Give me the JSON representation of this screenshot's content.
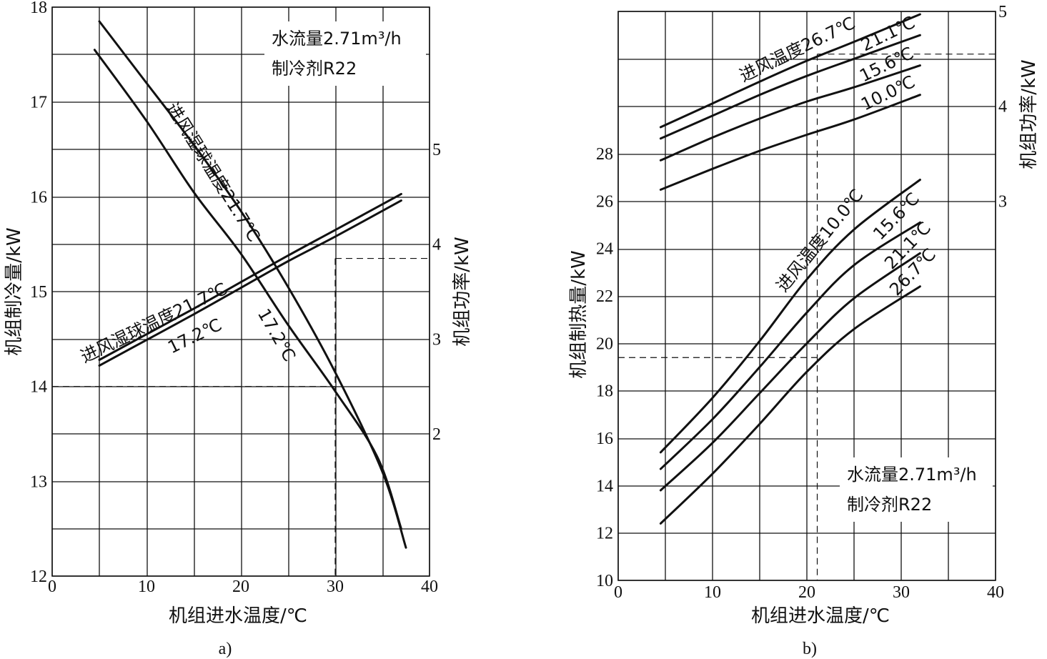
{
  "chart_data": [
    {
      "type": "line",
      "panel_label": "a)",
      "xlabel": "机组进水温度/℃",
      "ylabel": "机组制冷量/kW",
      "y2label": "机组功率/kW",
      "xlim": [
        0,
        40
      ],
      "ylim": [
        12,
        18
      ],
      "y2lim": [
        0,
        6
      ],
      "x_ticks": [
        "0",
        "10",
        "20",
        "30",
        "40"
      ],
      "y_ticks": [
        "12",
        "13",
        "14",
        "15",
        "16",
        "17",
        "18"
      ],
      "y2_ticks": [
        "2",
        "3",
        "4",
        "5"
      ],
      "info_box": [
        "水流量2.71m³/h",
        "制冷剂R22"
      ],
      "grid": true,
      "series": [
        {
          "name": "进风湿球温度21.7℃",
          "axis": "left",
          "x": [
            5,
            10,
            15,
            20,
            25,
            30,
            35,
            37.5
          ],
          "y": [
            17.85,
            17.2,
            16.55,
            15.85,
            15.05,
            14.15,
            13.1,
            12.3
          ]
        },
        {
          "name": "17.2℃",
          "axis": "left",
          "x": [
            4.5,
            10,
            15,
            20,
            25,
            30,
            34.5,
            37
          ],
          "y": [
            17.55,
            16.8,
            16.05,
            15.4,
            14.65,
            13.95,
            13.25,
            12.5
          ]
        },
        {
          "name": "进风湿球温度21.7℃",
          "axis": "right",
          "x": [
            5,
            10,
            15,
            20,
            25,
            30,
            37
          ],
          "y": [
            2.78,
            3.05,
            3.32,
            3.6,
            3.88,
            4.15,
            4.53
          ]
        },
        {
          "name": "17.2℃",
          "axis": "right",
          "x": [
            5,
            10,
            15,
            20,
            25,
            30,
            37
          ],
          "y": [
            2.72,
            2.99,
            3.26,
            3.54,
            3.82,
            4.08,
            4.46
          ]
        }
      ],
      "curve_labels": [
        {
          "text": "进风湿球温度21.7℃",
          "for": "cooling"
        },
        {
          "text": "17.2℃",
          "for": "cooling"
        },
        {
          "text": "进风湿球温度21.7℃",
          "for": "power"
        },
        {
          "text": "17.2℃",
          "for": "power"
        }
      ],
      "reference_lines": {
        "x": 30,
        "y_left": 14,
        "y_right": 3.85
      }
    },
    {
      "type": "line",
      "panel_label": "b)",
      "xlabel": "机组进水温度/℃",
      "ylabel": "机组制热量/kW",
      "y2label": "机组功率/kW",
      "xlim": [
        0,
        40
      ],
      "ylim": [
        10,
        34
      ],
      "y2lim": [
        0,
        5
      ],
      "x_ticks": [
        "0",
        "10",
        "20",
        "30",
        "40"
      ],
      "y_ticks": [
        "10",
        "12",
        "14",
        "16",
        "18",
        "20",
        "22",
        "24",
        "26",
        "28"
      ],
      "y2_ticks": [
        "3",
        "4",
        "5"
      ],
      "info_box": [
        "水流量2.71m³/h",
        "制冷剂R22"
      ],
      "grid": true,
      "series": [
        {
          "name": "进风温度10.0℃",
          "axis": "left",
          "x": [
            4.5,
            10,
            15,
            20,
            25,
            32
          ],
          "y": [
            15.4,
            17.7,
            20.1,
            22.7,
            24.8,
            26.9
          ]
        },
        {
          "name": "15.6℃",
          "axis": "left",
          "x": [
            4.5,
            10,
            15,
            20,
            25,
            32
          ],
          "y": [
            14.7,
            16.8,
            19.0,
            21.3,
            23.3,
            25.1
          ]
        },
        {
          "name": "21.1℃",
          "axis": "left",
          "x": [
            4.5,
            10,
            15,
            20,
            25,
            32
          ],
          "y": [
            13.8,
            15.8,
            17.9,
            20.0,
            21.9,
            23.8
          ]
        },
        {
          "name": "26.7℃",
          "axis": "left",
          "x": [
            4.5,
            10,
            15,
            20,
            25,
            32
          ],
          "y": [
            12.4,
            14.5,
            16.6,
            18.8,
            20.6,
            22.4
          ]
        },
        {
          "name": "进风温度26.7℃",
          "axis": "right",
          "x": [
            4.5,
            10,
            15,
            20,
            25,
            32
          ],
          "y": [
            3.78,
            4.03,
            4.26,
            4.48,
            4.68,
            4.97
          ]
        },
        {
          "name": "21.1℃",
          "axis": "right",
          "x": [
            4.5,
            10,
            15,
            20,
            25,
            32
          ],
          "y": [
            3.66,
            3.9,
            4.12,
            4.32,
            4.5,
            4.75
          ]
        },
        {
          "name": "15.6℃",
          "axis": "right",
          "x": [
            4.5,
            10,
            15,
            20,
            25,
            32
          ],
          "y": [
            3.43,
            3.67,
            3.87,
            4.05,
            4.2,
            4.43
          ]
        },
        {
          "name": "10.0℃",
          "axis": "right",
          "x": [
            4.5,
            10,
            15,
            20,
            25,
            32
          ],
          "y": [
            3.12,
            3.34,
            3.53,
            3.7,
            3.86,
            4.12
          ]
        }
      ],
      "curve_labels": [
        {
          "text": "进风温度26.7℃",
          "for": "power"
        },
        {
          "text": "21.1℃",
          "for": "power"
        },
        {
          "text": "15.6℃",
          "for": "power"
        },
        {
          "text": "10.0℃",
          "for": "power"
        },
        {
          "text": "进风温度10.0℃",
          "for": "heating"
        },
        {
          "text": "15.6℃",
          "for": "heating"
        },
        {
          "text": "21.1℃",
          "for": "heating"
        },
        {
          "text": "26.7℃",
          "for": "heating"
        }
      ],
      "reference_lines": {
        "x": 21.1,
        "y_left": 19.4,
        "y_right": 4.55
      }
    }
  ]
}
